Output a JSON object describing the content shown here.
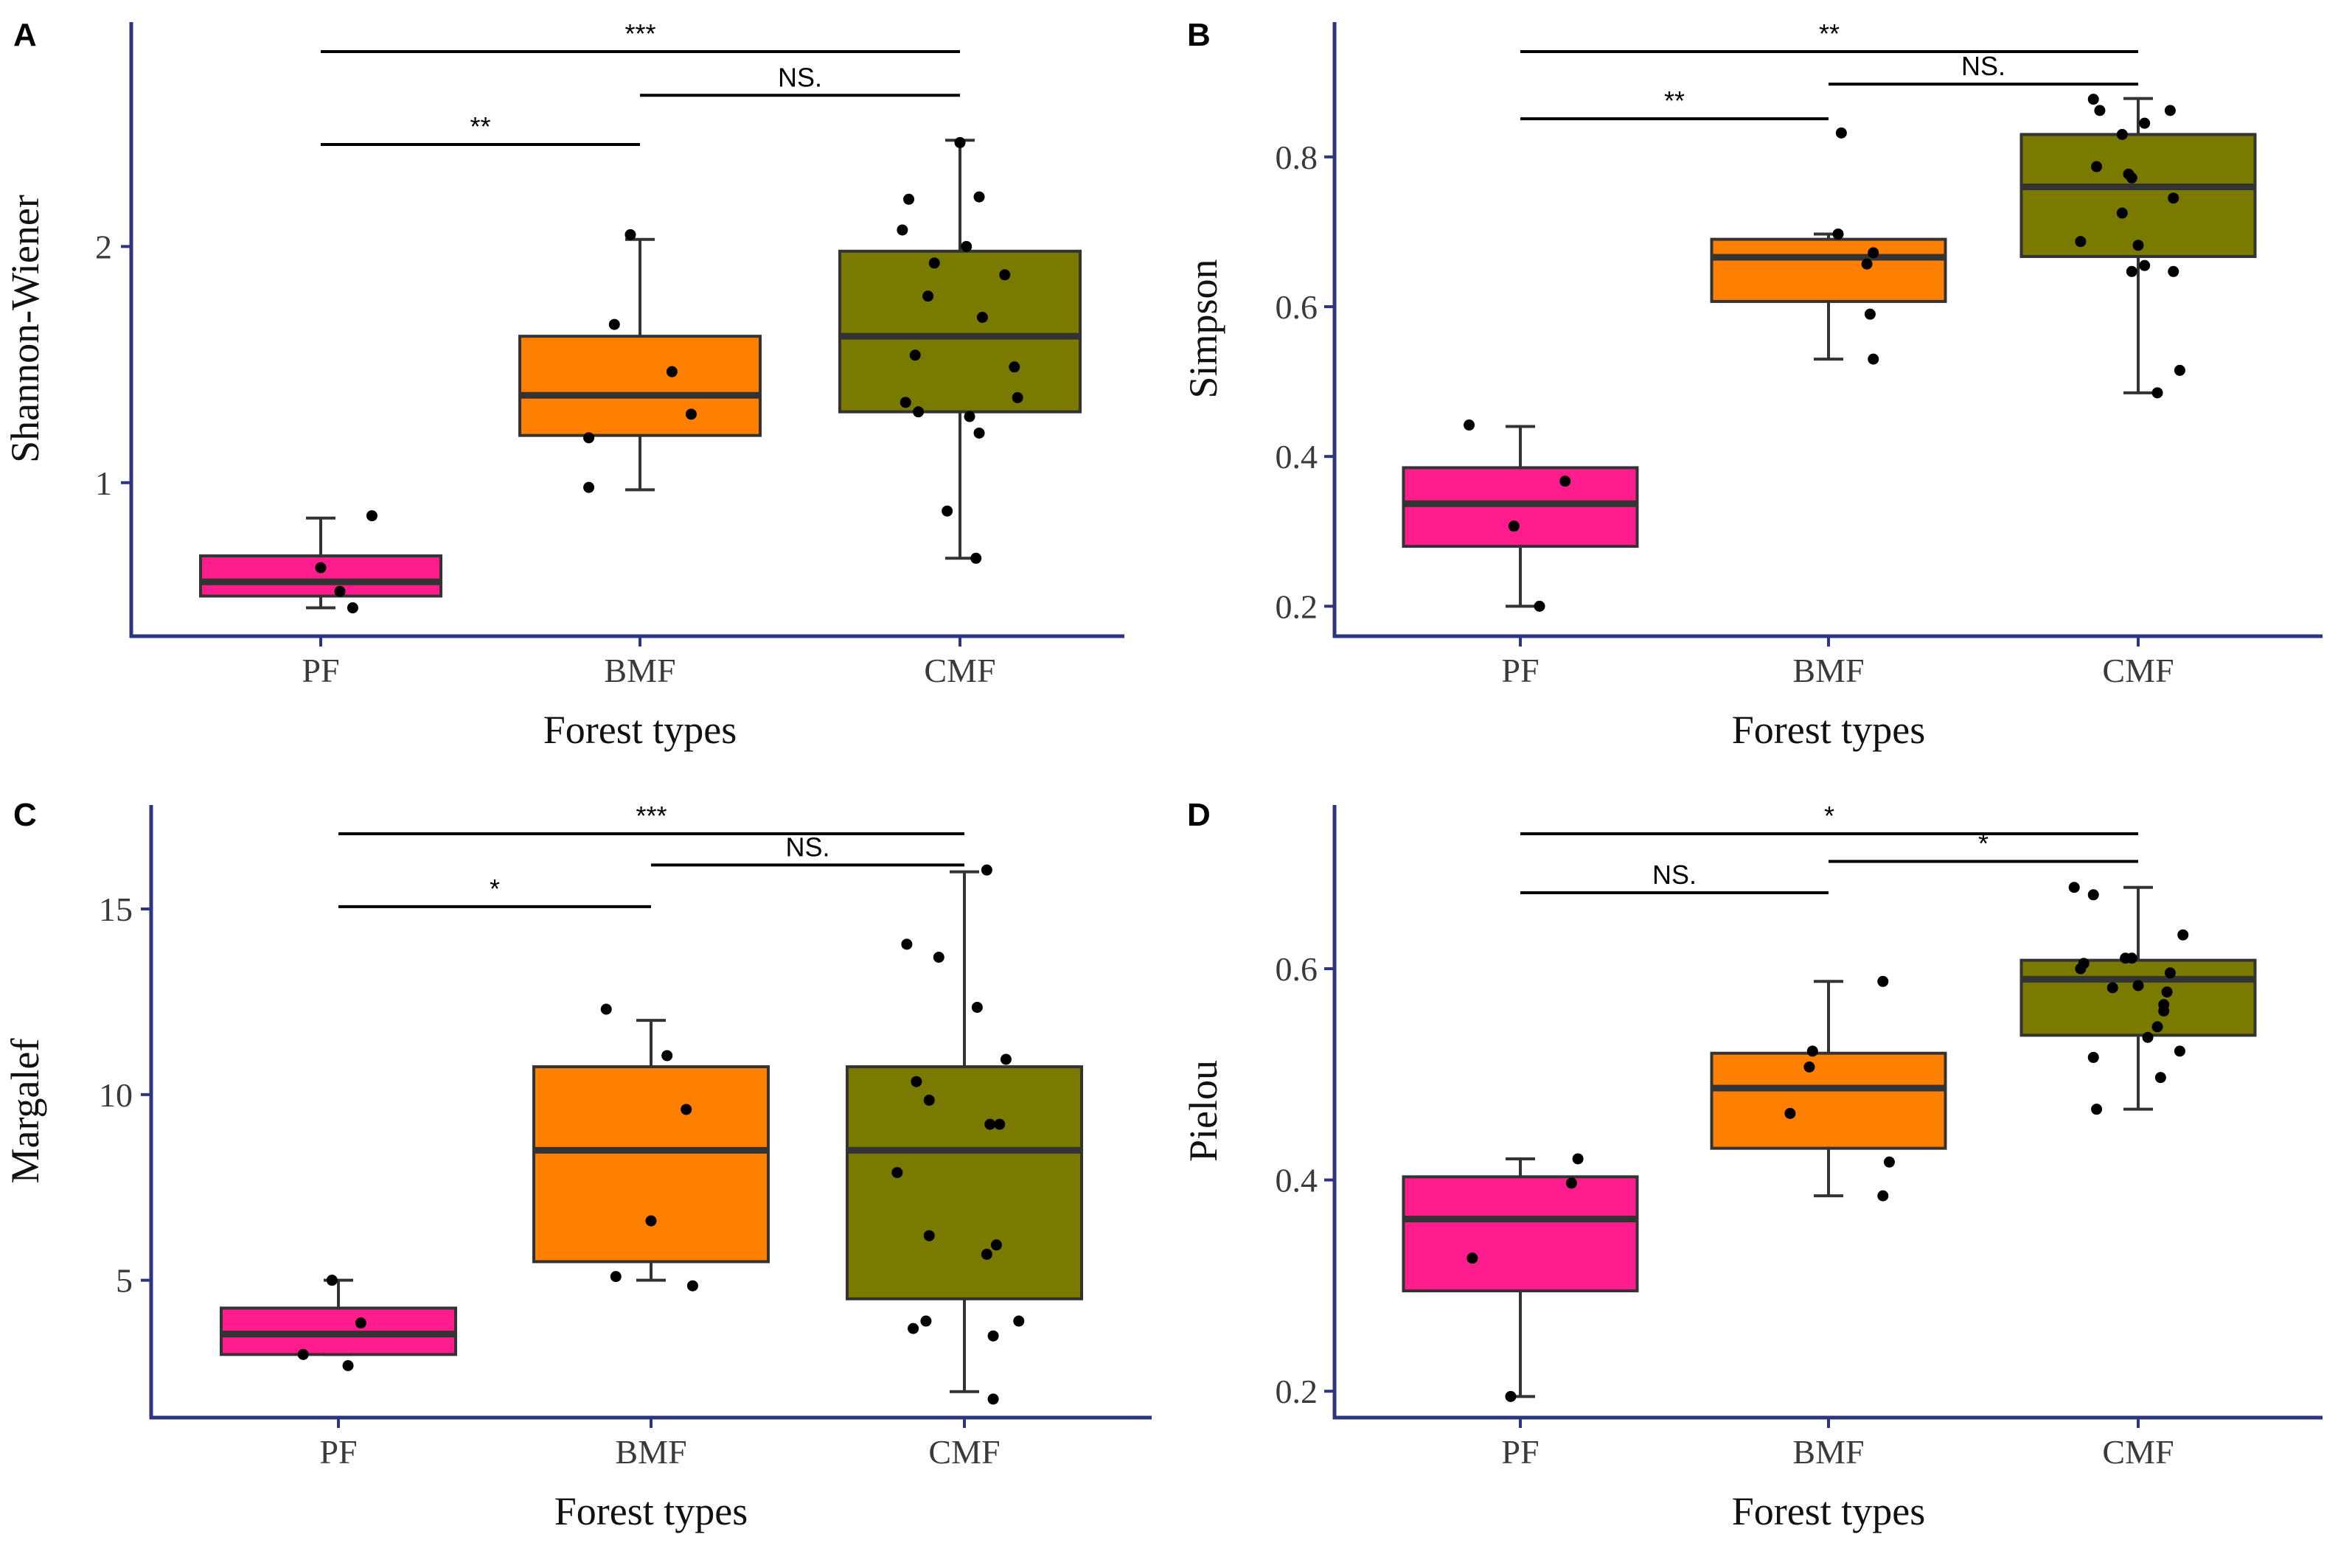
{
  "figure": {
    "colors": {
      "axis": "#2e3580",
      "PF": "#ff1c8d",
      "BMF": "#ff7f00",
      "CMF": "#7a7a00",
      "box_stroke": "#333333",
      "point": "#000000"
    }
  },
  "chart_data": [
    {
      "panel": "A",
      "type": "box",
      "xlabel": "Forest types",
      "ylabel": "Shannon-Wiener",
      "categories": [
        "PF",
        "BMF",
        "CMF"
      ],
      "ylim": [
        0.35,
        2.95
      ],
      "yticks": [
        1,
        2
      ],
      "boxes": [
        {
          "category": "PF",
          "whisker_low": 0.47,
          "q1": 0.52,
          "median": 0.58,
          "q3": 0.69,
          "whisker_high": 0.85
        },
        {
          "category": "BMF",
          "whisker_low": 0.97,
          "q1": 1.2,
          "median": 1.37,
          "q3": 1.62,
          "whisker_high": 2.03
        },
        {
          "category": "CMF",
          "whisker_low": 0.68,
          "q1": 1.3,
          "median": 1.62,
          "q3": 1.98,
          "whisker_high": 2.45
        }
      ],
      "points": [
        {
          "category": "PF",
          "jitter": 0.0,
          "y": 0.64
        },
        {
          "category": "PF",
          "jitter": 0.06,
          "y": 0.54
        },
        {
          "category": "PF",
          "jitter": 0.1,
          "y": 0.47
        },
        {
          "category": "PF",
          "jitter": 0.16,
          "y": 0.86
        },
        {
          "category": "BMF",
          "jitter": -0.16,
          "y": 0.98
        },
        {
          "category": "BMF",
          "jitter": -0.16,
          "y": 1.19
        },
        {
          "category": "BMF",
          "jitter": -0.08,
          "y": 1.67
        },
        {
          "category": "BMF",
          "jitter": -0.03,
          "y": 2.05
        },
        {
          "category": "BMF",
          "jitter": 0.1,
          "y": 1.47
        },
        {
          "category": "BMF",
          "jitter": 0.16,
          "y": 1.29
        },
        {
          "category": "CMF",
          "jitter": -0.18,
          "y": 2.07
        },
        {
          "category": "CMF",
          "jitter": -0.17,
          "y": 1.34
        },
        {
          "category": "CMF",
          "jitter": -0.16,
          "y": 2.2
        },
        {
          "category": "CMF",
          "jitter": -0.14,
          "y": 1.54
        },
        {
          "category": "CMF",
          "jitter": -0.13,
          "y": 1.3
        },
        {
          "category": "CMF",
          "jitter": -0.1,
          "y": 1.79
        },
        {
          "category": "CMF",
          "jitter": -0.08,
          "y": 1.93
        },
        {
          "category": "CMF",
          "jitter": -0.04,
          "y": 0.88
        },
        {
          "category": "CMF",
          "jitter": 0.0,
          "y": 2.44
        },
        {
          "category": "CMF",
          "jitter": 0.02,
          "y": 2.0
        },
        {
          "category": "CMF",
          "jitter": 0.03,
          "y": 1.28
        },
        {
          "category": "CMF",
          "jitter": 0.05,
          "y": 0.68
        },
        {
          "category": "CMF",
          "jitter": 0.06,
          "y": 2.21
        },
        {
          "category": "CMF",
          "jitter": 0.06,
          "y": 1.21
        },
        {
          "category": "CMF",
          "jitter": 0.07,
          "y": 1.7
        },
        {
          "category": "CMF",
          "jitter": 0.14,
          "y": 1.88
        },
        {
          "category": "CMF",
          "jitter": 0.17,
          "y": 1.49
        },
        {
          "category": "CMF",
          "jitter": 0.18,
          "y": 1.36
        }
      ],
      "significance": [
        {
          "from": "PF",
          "to": "CMF",
          "level": 0.5,
          "label": "***"
        },
        {
          "from": "BMF",
          "to": "CMF",
          "level": 0.34,
          "label": "NS."
        },
        {
          "from": "PF",
          "to": "BMF",
          "level": 0.16,
          "label": "**"
        }
      ]
    },
    {
      "panel": "B",
      "type": "box",
      "xlabel": "Forest types",
      "ylabel": "Simpson",
      "categories": [
        "PF",
        "BMF",
        "CMF"
      ],
      "ylim": [
        0.16,
        0.98
      ],
      "yticks": [
        0.2,
        0.4,
        0.6,
        0.8
      ],
      "boxes": [
        {
          "category": "PF",
          "whisker_low": 0.2,
          "q1": 0.28,
          "median": 0.337,
          "q3": 0.385,
          "whisker_high": 0.44
        },
        {
          "category": "BMF",
          "whisker_low": 0.53,
          "q1": 0.607,
          "median": 0.666,
          "q3": 0.69,
          "whisker_high": 0.697
        },
        {
          "category": "CMF",
          "whisker_low": 0.485,
          "q1": 0.667,
          "median": 0.76,
          "q3": 0.83,
          "whisker_high": 0.878
        }
      ],
      "points": [
        {
          "category": "PF",
          "jitter": -0.16,
          "y": 0.442
        },
        {
          "category": "PF",
          "jitter": -0.02,
          "y": 0.307
        },
        {
          "category": "PF",
          "jitter": 0.06,
          "y": 0.2
        },
        {
          "category": "PF",
          "jitter": 0.14,
          "y": 0.367
        },
        {
          "category": "BMF",
          "jitter": 0.03,
          "y": 0.697
        },
        {
          "category": "BMF",
          "jitter": 0.04,
          "y": 0.832
        },
        {
          "category": "BMF",
          "jitter": 0.12,
          "y": 0.657
        },
        {
          "category": "BMF",
          "jitter": 0.13,
          "y": 0.59
        },
        {
          "category": "BMF",
          "jitter": 0.14,
          "y": 0.672
        },
        {
          "category": "BMF",
          "jitter": 0.14,
          "y": 0.53
        },
        {
          "category": "CMF",
          "jitter": -0.18,
          "y": 0.687
        },
        {
          "category": "CMF",
          "jitter": -0.14,
          "y": 0.877
        },
        {
          "category": "CMF",
          "jitter": -0.13,
          "y": 0.787
        },
        {
          "category": "CMF",
          "jitter": -0.12,
          "y": 0.862
        },
        {
          "category": "CMF",
          "jitter": -0.05,
          "y": 0.725
        },
        {
          "category": "CMF",
          "jitter": -0.05,
          "y": 0.83
        },
        {
          "category": "CMF",
          "jitter": -0.03,
          "y": 0.777
        },
        {
          "category": "CMF",
          "jitter": -0.02,
          "y": 0.772
        },
        {
          "category": "CMF",
          "jitter": -0.02,
          "y": 0.647
        },
        {
          "category": "CMF",
          "jitter": 0.0,
          "y": 0.682
        },
        {
          "category": "CMF",
          "jitter": 0.02,
          "y": 0.655
        },
        {
          "category": "CMF",
          "jitter": 0.02,
          "y": 0.845
        },
        {
          "category": "CMF",
          "jitter": 0.06,
          "y": 0.485
        },
        {
          "category": "CMF",
          "jitter": 0.1,
          "y": 0.862
        },
        {
          "category": "CMF",
          "jitter": 0.11,
          "y": 0.745
        },
        {
          "category": "CMF",
          "jitter": 0.11,
          "y": 0.647
        },
        {
          "category": "CMF",
          "jitter": 0.13,
          "y": 0.515
        }
      ],
      "significance": [
        {
          "from": "PF",
          "to": "CMF",
          "level": 0.5,
          "label": "**"
        },
        {
          "from": "BMF",
          "to": "CMF",
          "level": 0.35,
          "label": "NS."
        },
        {
          "from": "PF",
          "to": "BMF",
          "level": 0.19,
          "label": "**"
        }
      ]
    },
    {
      "panel": "C",
      "type": "box",
      "xlabel": "Forest types",
      "ylabel": "Margalef",
      "categories": [
        "PF",
        "BMF",
        "CMF"
      ],
      "ylim": [
        1.3,
        17.8
      ],
      "yticks": [
        5,
        10,
        15
      ],
      "boxes": [
        {
          "category": "PF",
          "whisker_low": 3.0,
          "q1": 3.0,
          "median": 3.55,
          "q3": 4.25,
          "whisker_high": 5.0
        },
        {
          "category": "BMF",
          "whisker_low": 5.0,
          "q1": 5.5,
          "median": 8.5,
          "q3": 10.75,
          "whisker_high": 12.0
        },
        {
          "category": "CMF",
          "whisker_low": 2.0,
          "q1": 4.5,
          "median": 8.5,
          "q3": 10.75,
          "whisker_high": 16.0
        }
      ],
      "points": [
        {
          "category": "PF",
          "jitter": -0.11,
          "y": 3.0
        },
        {
          "category": "PF",
          "jitter": -0.02,
          "y": 5.0
        },
        {
          "category": "PF",
          "jitter": 0.03,
          "y": 2.7
        },
        {
          "category": "PF",
          "jitter": 0.07,
          "y": 3.85
        },
        {
          "category": "BMF",
          "jitter": -0.14,
          "y": 12.3
        },
        {
          "category": "BMF",
          "jitter": -0.11,
          "y": 5.1
        },
        {
          "category": "BMF",
          "jitter": 0.0,
          "y": 6.6
        },
        {
          "category": "BMF",
          "jitter": 0.05,
          "y": 11.05
        },
        {
          "category": "BMF",
          "jitter": 0.11,
          "y": 9.6
        },
        {
          "category": "BMF",
          "jitter": 0.13,
          "y": 4.85
        },
        {
          "category": "CMF",
          "jitter": -0.21,
          "y": 7.9
        },
        {
          "category": "CMF",
          "jitter": -0.18,
          "y": 14.05
        },
        {
          "category": "CMF",
          "jitter": -0.16,
          "y": 3.7
        },
        {
          "category": "CMF",
          "jitter": -0.15,
          "y": 10.35
        },
        {
          "category": "CMF",
          "jitter": -0.12,
          "y": 3.9
        },
        {
          "category": "CMF",
          "jitter": -0.11,
          "y": 9.85
        },
        {
          "category": "CMF",
          "jitter": -0.11,
          "y": 6.2
        },
        {
          "category": "CMF",
          "jitter": -0.08,
          "y": 13.7
        },
        {
          "category": "CMF",
          "jitter": 0.04,
          "y": 12.35
        },
        {
          "category": "CMF",
          "jitter": 0.07,
          "y": 16.05
        },
        {
          "category": "CMF",
          "jitter": 0.07,
          "y": 5.7
        },
        {
          "category": "CMF",
          "jitter": 0.08,
          "y": 9.2
        },
        {
          "category": "CMF",
          "jitter": 0.09,
          "y": 1.8
        },
        {
          "category": "CMF",
          "jitter": 0.09,
          "y": 3.5
        },
        {
          "category": "CMF",
          "jitter": 0.1,
          "y": 5.95
        },
        {
          "category": "CMF",
          "jitter": 0.11,
          "y": 9.2
        },
        {
          "category": "CMF",
          "jitter": 0.13,
          "y": 10.95
        },
        {
          "category": "CMF",
          "jitter": 0.17,
          "y": 3.9
        }
      ],
      "significance": [
        {
          "from": "PF",
          "to": "CMF",
          "level": 0.5,
          "label": "***"
        },
        {
          "from": "BMF",
          "to": "CMF",
          "level": 0.35,
          "label": "NS."
        },
        {
          "from": "PF",
          "to": "BMF",
          "level": 0.15,
          "label": "*"
        }
      ]
    },
    {
      "panel": "D",
      "type": "box",
      "xlabel": "Forest types",
      "ylabel": "Pielou",
      "categories": [
        "PF",
        "BMF",
        "CMF"
      ],
      "ylim": [
        0.175,
        0.755
      ],
      "yticks": [
        0.2,
        0.4,
        0.6
      ],
      "boxes": [
        {
          "category": "PF",
          "whisker_low": 0.195,
          "q1": 0.295,
          "median": 0.363,
          "q3": 0.403,
          "whisker_high": 0.42
        },
        {
          "category": "BMF",
          "whisker_low": 0.385,
          "q1": 0.43,
          "median": 0.487,
          "q3": 0.52,
          "whisker_high": 0.588
        },
        {
          "category": "CMF",
          "whisker_low": 0.467,
          "q1": 0.537,
          "median": 0.59,
          "q3": 0.608,
          "whisker_high": 0.677
        }
      ],
      "points": [
        {
          "category": "PF",
          "jitter": -0.15,
          "y": 0.326
        },
        {
          "category": "PF",
          "jitter": -0.03,
          "y": 0.195
        },
        {
          "category": "PF",
          "jitter": 0.16,
          "y": 0.397
        },
        {
          "category": "PF",
          "jitter": 0.18,
          "y": 0.42
        },
        {
          "category": "BMF",
          "jitter": -0.12,
          "y": 0.463
        },
        {
          "category": "BMF",
          "jitter": -0.06,
          "y": 0.507
        },
        {
          "category": "BMF",
          "jitter": -0.05,
          "y": 0.522
        },
        {
          "category": "BMF",
          "jitter": 0.17,
          "y": 0.588
        },
        {
          "category": "BMF",
          "jitter": 0.17,
          "y": 0.385
        },
        {
          "category": "BMF",
          "jitter": 0.19,
          "y": 0.417
        },
        {
          "category": "CMF",
          "jitter": -0.2,
          "y": 0.677
        },
        {
          "category": "CMF",
          "jitter": -0.18,
          "y": 0.6
        },
        {
          "category": "CMF",
          "jitter": -0.17,
          "y": 0.605
        },
        {
          "category": "CMF",
          "jitter": -0.14,
          "y": 0.67
        },
        {
          "category": "CMF",
          "jitter": -0.14,
          "y": 0.516
        },
        {
          "category": "CMF",
          "jitter": -0.13,
          "y": 0.467
        },
        {
          "category": "CMF",
          "jitter": -0.08,
          "y": 0.582
        },
        {
          "category": "CMF",
          "jitter": -0.04,
          "y": 0.61
        },
        {
          "category": "CMF",
          "jitter": -0.02,
          "y": 0.61
        },
        {
          "category": "CMF",
          "jitter": 0.0,
          "y": 0.584
        },
        {
          "category": "CMF",
          "jitter": 0.03,
          "y": 0.535
        },
        {
          "category": "CMF",
          "jitter": 0.06,
          "y": 0.545
        },
        {
          "category": "CMF",
          "jitter": 0.07,
          "y": 0.497
        },
        {
          "category": "CMF",
          "jitter": 0.08,
          "y": 0.56
        },
        {
          "category": "CMF",
          "jitter": 0.08,
          "y": 0.566
        },
        {
          "category": "CMF",
          "jitter": 0.09,
          "y": 0.578
        },
        {
          "category": "CMF",
          "jitter": 0.1,
          "y": 0.596
        },
        {
          "category": "CMF",
          "jitter": 0.13,
          "y": 0.522
        },
        {
          "category": "CMF",
          "jitter": 0.14,
          "y": 0.632
        }
      ],
      "significance": [
        {
          "from": "PF",
          "to": "CMF",
          "level": 0.5,
          "label": "*"
        },
        {
          "from": "BMF",
          "to": "CMF",
          "level": 0.35,
          "label": "*"
        },
        {
          "from": "PF",
          "to": "BMF",
          "level": 0.18,
          "label": "NS."
        }
      ]
    }
  ]
}
